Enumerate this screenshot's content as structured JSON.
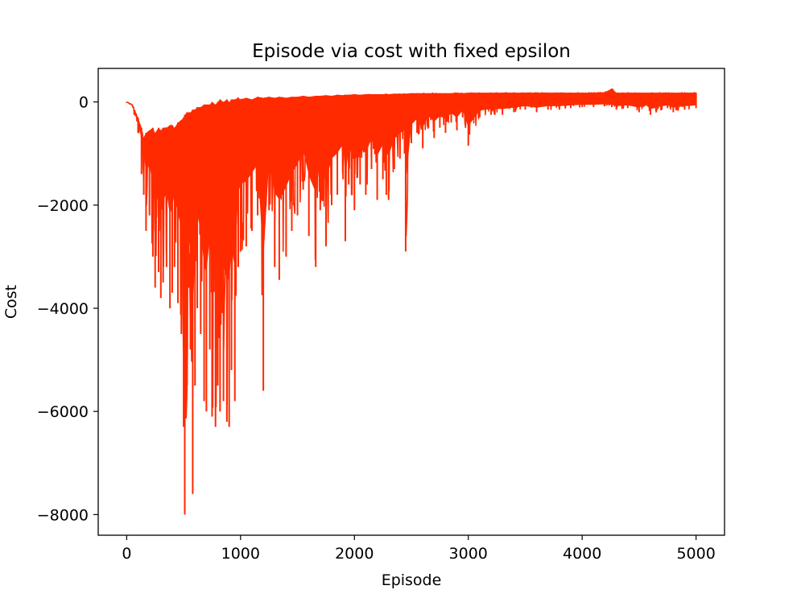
{
  "chart_data": {
    "type": "line",
    "title": "Episode via cost with fixed epsilon",
    "xlabel": "Episode",
    "ylabel": "Cost",
    "xlim": [
      -250,
      5250
    ],
    "ylim": [
      -8400,
      650
    ],
    "xticks": [
      0,
      1000,
      2000,
      3000,
      4000,
      5000
    ],
    "xtick_labels": [
      "0",
      "1000",
      "2000",
      "3000",
      "4000",
      "5000"
    ],
    "yticks": [
      0,
      -2000,
      -4000,
      -6000,
      -8000
    ],
    "ytick_labels": [
      "0",
      "−2000",
      "−4000",
      "−6000",
      "−8000"
    ],
    "grid": false,
    "legend": false,
    "series": [
      {
        "color": "#ff2a00",
        "x": [
          0,
          50,
          100,
          130,
          150,
          170,
          200,
          230,
          250,
          280,
          300,
          320,
          350,
          380,
          400,
          420,
          450,
          480,
          500,
          510,
          530,
          560,
          580,
          600,
          620,
          650,
          680,
          700,
          730,
          750,
          780,
          800,
          820,
          850,
          880,
          900,
          920,
          950,
          980,
          1000,
          1050,
          1100,
          1150,
          1200,
          1250,
          1300,
          1340,
          1400,
          1450,
          1500,
          1550,
          1600,
          1660,
          1700,
          1750,
          1800,
          1850,
          1900,
          1920,
          1950,
          2000,
          2050,
          2100,
          2150,
          2200,
          2250,
          2280,
          2300,
          2350,
          2400,
          2440,
          2450,
          2500,
          2550,
          2600,
          2650,
          2700,
          2750,
          2800,
          2850,
          2900,
          2950,
          3000,
          3100,
          3200,
          3300,
          3400,
          3500,
          3600,
          3700,
          3800,
          3900,
          4000,
          4100,
          4200,
          4260,
          4300,
          4400,
          4500,
          4550,
          4600,
          4700,
          4750,
          4800,
          4900,
          5000
        ],
        "upper": [
          0,
          -50,
          -300,
          -500,
          -700,
          -600,
          -550,
          -500,
          -600,
          -500,
          -550,
          -500,
          -500,
          -450,
          -450,
          -500,
          -400,
          -350,
          -300,
          -250,
          -200,
          -200,
          -150,
          -150,
          -100,
          -100,
          -50,
          -50,
          -50,
          0,
          -50,
          0,
          50,
          0,
          50,
          0,
          50,
          50,
          80,
          50,
          80,
          50,
          100,
          80,
          100,
          80,
          100,
          80,
          100,
          100,
          120,
          100,
          120,
          120,
          130,
          120,
          140,
          130,
          140,
          140,
          150,
          140,
          150,
          150,
          150,
          150,
          160,
          150,
          160,
          160,
          160,
          160,
          170,
          170,
          170,
          170,
          170,
          170,
          170,
          170,
          180,
          170,
          180,
          180,
          180,
          180,
          180,
          180,
          180,
          180,
          180,
          180,
          180,
          180,
          190,
          260,
          180,
          180,
          180,
          180,
          180,
          180,
          180,
          180,
          180,
          180
        ],
        "lower": [
          -20,
          -80,
          -600,
          -1400,
          -1800,
          -2500,
          -2200,
          -3000,
          -3600,
          -3300,
          -3800,
          -3500,
          -3200,
          -4000,
          -3700,
          -3200,
          -3900,
          -4500,
          -6300,
          -8000,
          -5500,
          -4800,
          -7600,
          -5500,
          -4000,
          -4500,
          -5800,
          -6000,
          -4800,
          -6100,
          -6300,
          -5500,
          -6000,
          -5800,
          -6200,
          -6300,
          -5200,
          -5800,
          -3200,
          -2900,
          -2800,
          -2500,
          -2200,
          -5600,
          -2100,
          -3200,
          -3450,
          -3000,
          -2500,
          -2200,
          -1700,
          -2600,
          -3200,
          -2100,
          -2800,
          -2000,
          -1800,
          -1500,
          -2700,
          -1600,
          -2100,
          -1600,
          -1800,
          -1300,
          -1900,
          -1500,
          -1800,
          -1900,
          -1300,
          -1100,
          -1000,
          -2900,
          -800,
          -600,
          -900,
          -500,
          -700,
          -500,
          -600,
          -400,
          -550,
          -300,
          -850,
          -300,
          -250,
          -250,
          -200,
          -150,
          -200,
          -150,
          -150,
          -120,
          -100,
          -100,
          -80,
          -100,
          -150,
          -120,
          -200,
          -80,
          -250,
          -150,
          -120,
          -200,
          -150,
          -120
        ]
      }
    ]
  }
}
